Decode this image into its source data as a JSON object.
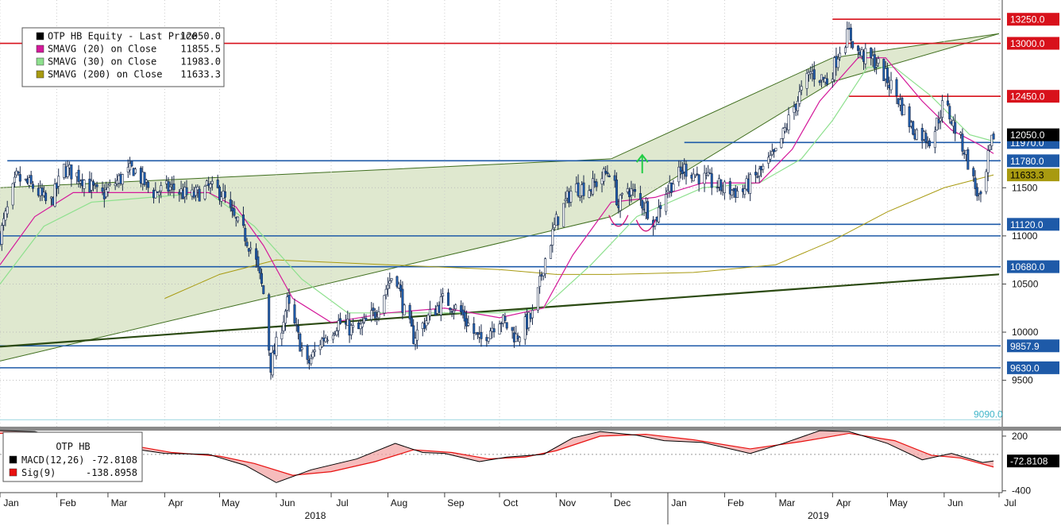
{
  "chart_data": [
    {
      "type": "candlestick",
      "title": "OTP HB Equity - Last Price",
      "legend": {
        "placement": "top-left",
        "entries": [
          {
            "name": "OTP HB Equity - Last Price",
            "value": "12050.0",
            "color": "#000000"
          },
          {
            "name": "SMAVG (20)  on Close",
            "value": "11855.5",
            "color": "#d4199a"
          },
          {
            "name": "SMAVG (30)  on Close",
            "value": "11983.0",
            "color": "#8ee08e"
          },
          {
            "name": "SMAVG (200)  on Close",
            "value": "11633.3",
            "color": "#a89a10"
          }
        ]
      },
      "y_axis": {
        "ticks": [
          "9500",
          "10000",
          "10500",
          "11000",
          "11500"
        ],
        "tick_values": [
          9500,
          10000,
          10500,
          11000,
          11500
        ],
        "ylim": [
          9010,
          13450
        ],
        "side": "right"
      },
      "x_axis": {
        "month_labels": [
          "Jan",
          "Feb",
          "Mar",
          "Apr",
          "May",
          "Jun",
          "Jul",
          "Aug",
          "Sep",
          "Oct",
          "Nov",
          "Dec",
          "Jan",
          "Feb",
          "Mar",
          "Apr",
          "May",
          "Jun",
          "Jul"
        ],
        "year_labels": [
          "2018",
          "2019"
        ],
        "start": "2018-01-01",
        "end": "2019-07-01"
      },
      "price_path": [
        [
          "2018-01-01",
          11000
        ],
        [
          "2018-01-10",
          11600
        ],
        [
          "2018-01-20",
          11500
        ],
        [
          "2018-01-28",
          11300
        ],
        [
          "2018-02-05",
          11700
        ],
        [
          "2018-02-15",
          11600
        ],
        [
          "2018-02-25",
          11400
        ],
        [
          "2018-03-05",
          11550
        ],
        [
          "2018-03-15",
          11700
        ],
        [
          "2018-03-25",
          11450
        ],
        [
          "2018-04-05",
          11500
        ],
        [
          "2018-04-15",
          11400
        ],
        [
          "2018-04-25",
          11500
        ],
        [
          "2018-05-02",
          11450
        ],
        [
          "2018-05-08",
          11200
        ],
        [
          "2018-05-15",
          11000
        ],
        [
          "2018-05-20",
          10800
        ],
        [
          "2018-05-25",
          10400
        ],
        [
          "2018-05-29",
          9650
        ],
        [
          "2018-06-03",
          10000
        ],
        [
          "2018-06-07",
          10300
        ],
        [
          "2018-06-12",
          10000
        ],
        [
          "2018-06-18",
          9650
        ],
        [
          "2018-06-25",
          9900
        ],
        [
          "2018-07-05",
          10100
        ],
        [
          "2018-07-15",
          10000
        ],
        [
          "2018-07-25",
          10200
        ],
        [
          "2018-08-01",
          10500
        ],
        [
          "2018-08-05",
          10650
        ],
        [
          "2018-08-10",
          10200
        ],
        [
          "2018-08-15",
          9950
        ],
        [
          "2018-08-25",
          10200
        ],
        [
          "2018-09-01",
          10350
        ],
        [
          "2018-09-10",
          10200
        ],
        [
          "2018-09-20",
          9900
        ],
        [
          "2018-10-01",
          10150
        ],
        [
          "2018-10-10",
          9950
        ],
        [
          "2018-10-20",
          10200
        ],
        [
          "2018-10-25",
          10700
        ],
        [
          "2018-11-01",
          11150
        ],
        [
          "2018-11-10",
          11500
        ],
        [
          "2018-11-20",
          11500
        ],
        [
          "2018-12-01",
          11700
        ],
        [
          "2018-12-05",
          11300
        ],
        [
          "2018-12-10",
          11500
        ],
        [
          "2018-12-20",
          11300
        ],
        [
          "2018-12-25",
          11150
        ],
        [
          "2018-12-30",
          11450
        ],
        [
          "2019-01-10",
          11700
        ],
        [
          "2019-01-20",
          11600
        ],
        [
          "2019-01-30",
          11500
        ],
        [
          "2019-02-10",
          11450
        ],
        [
          "2019-02-20",
          11650
        ],
        [
          "2019-03-01",
          11850
        ],
        [
          "2019-03-10",
          12300
        ],
        [
          "2019-03-20",
          12700
        ],
        [
          "2019-03-30",
          12600
        ],
        [
          "2019-04-05",
          12950
        ],
        [
          "2019-04-10",
          13100
        ],
        [
          "2019-04-15",
          12900
        ],
        [
          "2019-04-25",
          12800
        ],
        [
          "2019-05-05",
          12500
        ],
        [
          "2019-05-15",
          12100
        ],
        [
          "2019-05-25",
          12000
        ],
        [
          "2019-06-01",
          12400
        ],
        [
          "2019-06-05",
          12200
        ],
        [
          "2019-06-12",
          11900
        ],
        [
          "2019-06-18",
          11500
        ],
        [
          "2019-06-22",
          11300
        ],
        [
          "2019-06-25",
          11800
        ],
        [
          "2019-06-28",
          12050
        ]
      ],
      "sma20_path": [
        [
          "2018-01-01",
          10700
        ],
        [
          "2018-01-20",
          11200
        ],
        [
          "2018-02-10",
          11450
        ],
        [
          "2018-04-25",
          11450
        ],
        [
          "2018-05-10",
          11300
        ],
        [
          "2018-05-25",
          10900
        ],
        [
          "2018-06-10",
          10350
        ],
        [
          "2018-07-01",
          10100
        ],
        [
          "2018-08-01",
          10200
        ],
        [
          "2018-09-01",
          10250
        ],
        [
          "2018-10-01",
          10150
        ],
        [
          "2018-10-25",
          10250
        ],
        [
          "2018-11-10",
          10800
        ],
        [
          "2018-12-01",
          11350
        ],
        [
          "2018-12-25",
          11400
        ],
        [
          "2019-01-20",
          11550
        ],
        [
          "2019-02-20",
          11550
        ],
        [
          "2019-03-10",
          11900
        ],
        [
          "2019-03-25",
          12400
        ],
        [
          "2019-04-15",
          12850
        ],
        [
          "2019-04-30",
          12850
        ],
        [
          "2019-05-20",
          12400
        ],
        [
          "2019-06-05",
          12100
        ],
        [
          "2019-06-20",
          11950
        ],
        [
          "2019-06-28",
          11855.5
        ]
      ],
      "sma30_path": [
        [
          "2018-01-01",
          10500
        ],
        [
          "2018-01-25",
          11100
        ],
        [
          "2018-02-20",
          11350
        ],
        [
          "2018-04-25",
          11450
        ],
        [
          "2018-05-20",
          11100
        ],
        [
          "2018-06-15",
          10550
        ],
        [
          "2018-07-10",
          10200
        ],
        [
          "2018-08-15",
          10200
        ],
        [
          "2018-10-01",
          10200
        ],
        [
          "2018-10-25",
          10250
        ],
        [
          "2018-11-20",
          10700
        ],
        [
          "2018-12-15",
          11200
        ],
        [
          "2019-01-20",
          11500
        ],
        [
          "2019-02-20",
          11550
        ],
        [
          "2019-03-15",
          11800
        ],
        [
          "2019-04-01",
          12200
        ],
        [
          "2019-04-20",
          12750
        ],
        [
          "2019-05-05",
          12750
        ],
        [
          "2019-05-25",
          12450
        ],
        [
          "2019-06-15",
          12050
        ],
        [
          "2019-06-28",
          11983
        ]
      ],
      "sma200_path": [
        [
          "2018-04-01",
          10350
        ],
        [
          "2018-05-01",
          10600
        ],
        [
          "2018-06-01",
          10750
        ],
        [
          "2018-08-01",
          10700
        ],
        [
          "2018-10-01",
          10650
        ],
        [
          "2018-11-01",
          10600
        ],
        [
          "2018-12-01",
          10600
        ],
        [
          "2019-01-15",
          10620
        ],
        [
          "2019-03-01",
          10700
        ],
        [
          "2019-04-01",
          10950
        ],
        [
          "2019-05-01",
          11250
        ],
        [
          "2019-06-01",
          11500
        ],
        [
          "2019-06-28",
          11633.3
        ]
      ],
      "channel": {
        "upper": [
          [
            "2018-01-01",
            11500
          ],
          [
            "2018-12-01",
            11800
          ],
          [
            "2019-04-01",
            12850
          ],
          [
            "2019-07-01",
            13100
          ]
        ],
        "lower": [
          [
            "2018-01-01",
            9700
          ],
          [
            "2018-12-01",
            11200
          ],
          [
            "2019-04-01",
            12600
          ],
          [
            "2019-07-01",
            13100
          ]
        ],
        "color": "#dfe8cf"
      },
      "trendlines": [
        {
          "from": [
            "2018-01-01",
            9850
          ],
          "to": [
            "2019-07-01",
            10600
          ],
          "color": "#2b4a12"
        }
      ],
      "levels": [
        {
          "label": "13250.0",
          "value": 13250,
          "color": "#d8111b",
          "from": "2019-04-01"
        },
        {
          "label": "13000.0",
          "value": 13000,
          "color": "#d8111b",
          "from": "2018-01-01"
        },
        {
          "label": "12450.0",
          "value": 12450,
          "color": "#d8111b",
          "from": "2019-04-10"
        },
        {
          "label": "11970.0",
          "value": 11970,
          "color": "#1e5aa8",
          "from": "2019-01-10"
        },
        {
          "label": "11780.0",
          "value": 11780,
          "color": "#1e5aa8",
          "from": "2018-01-05"
        },
        {
          "label": "11120.0",
          "value": 11120,
          "color": "#1e5aa8",
          "from": "2018-12-01"
        },
        {
          "label": "10680.0",
          "value": 10680,
          "color": "#1e5aa8",
          "from": "2018-01-01"
        },
        {
          "label": "9857.9",
          "value": 9857.9,
          "color": "#1e5aa8",
          "from": "2018-01-01"
        },
        {
          "label": "9630.0",
          "value": 9630,
          "color": "#1e5aa8",
          "from": "2018-01-01"
        }
      ],
      "other_levels": [
        {
          "value": 11000,
          "color": "#1e5aa8",
          "from": "2018-01-01"
        }
      ],
      "tags": [
        {
          "label": "12050.0",
          "value": 12050,
          "bg": "#000000",
          "fg": "#ffffff"
        },
        {
          "label": "11633.3",
          "value": 11633.3,
          "bg": "#a89a10",
          "fg": "#000000"
        }
      ],
      "faint_label": "9090.0",
      "faint_label_value": 9090,
      "marker": {
        "type": "up-arrow",
        "date": "2018-12-18",
        "value": 11650,
        "color": "#22cc44"
      },
      "annotations": [
        {
          "type": "curve",
          "date": "2018-12-05",
          "value": 11100
        },
        {
          "type": "curve",
          "date": "2018-12-20",
          "value": 11050
        }
      ]
    },
    {
      "type": "line",
      "title": "OTP HB",
      "legend": {
        "placement": "top-left",
        "entries": [
          {
            "name": "MACD(12,26)",
            "value": "-72.8108",
            "color": "#000000"
          },
          {
            "name": "Sig(9)",
            "value": "-138.8958",
            "color": "#e8100f"
          }
        ]
      },
      "y_axis": {
        "ticks": [
          "200",
          "-400"
        ],
        "tick_values": [
          200,
          -400
        ],
        "ylim": [
          -420,
          260
        ]
      },
      "macd_path": [
        [
          "2018-01-01",
          260
        ],
        [
          "2018-01-20",
          250
        ],
        [
          "2018-02-10",
          160
        ],
        [
          "2018-03-01",
          100
        ],
        [
          "2018-04-01",
          10
        ],
        [
          "2018-04-25",
          0
        ],
        [
          "2018-05-15",
          -120
        ],
        [
          "2018-06-01",
          -310
        ],
        [
          "2018-06-20",
          -170
        ],
        [
          "2018-07-15",
          -50
        ],
        [
          "2018-08-05",
          120
        ],
        [
          "2018-08-20",
          20
        ],
        [
          "2018-09-01",
          10
        ],
        [
          "2018-09-20",
          -80
        ],
        [
          "2018-10-05",
          -30
        ],
        [
          "2018-10-25",
          0
        ],
        [
          "2018-11-10",
          180
        ],
        [
          "2018-11-25",
          250
        ],
        [
          "2018-12-15",
          210
        ],
        [
          "2018-12-30",
          150
        ],
        [
          "2019-01-20",
          130
        ],
        [
          "2019-02-15",
          10
        ],
        [
          "2019-03-05",
          120
        ],
        [
          "2019-03-25",
          260
        ],
        [
          "2019-04-10",
          250
        ],
        [
          "2019-05-01",
          120
        ],
        [
          "2019-05-20",
          -60
        ],
        [
          "2019-06-05",
          10
        ],
        [
          "2019-06-22",
          -90
        ],
        [
          "2019-06-28",
          -72.8108
        ]
      ],
      "signal_path": [
        [
          "2018-01-01",
          230
        ],
        [
          "2018-01-25",
          240
        ],
        [
          "2018-02-15",
          190
        ],
        [
          "2018-03-10",
          110
        ],
        [
          "2018-04-05",
          20
        ],
        [
          "2018-05-01",
          -20
        ],
        [
          "2018-05-20",
          -100
        ],
        [
          "2018-06-10",
          -230
        ],
        [
          "2018-07-01",
          -190
        ],
        [
          "2018-07-25",
          -80
        ],
        [
          "2018-08-15",
          50
        ],
        [
          "2018-09-05",
          20
        ],
        [
          "2018-09-25",
          -50
        ],
        [
          "2018-10-15",
          -30
        ],
        [
          "2018-11-01",
          40
        ],
        [
          "2018-11-25",
          200
        ],
        [
          "2018-12-20",
          220
        ],
        [
          "2019-01-15",
          160
        ],
        [
          "2019-02-15",
          60
        ],
        [
          "2019-03-15",
          140
        ],
        [
          "2019-04-10",
          230
        ],
        [
          "2019-05-05",
          150
        ],
        [
          "2019-05-25",
          -10
        ],
        [
          "2019-06-10",
          -40
        ],
        [
          "2019-06-28",
          -138.8958
        ]
      ],
      "tags": [
        {
          "label": "-72.8108",
          "value": -72.8108,
          "bg": "#000000",
          "fg": "#ffffff"
        }
      ]
    }
  ]
}
